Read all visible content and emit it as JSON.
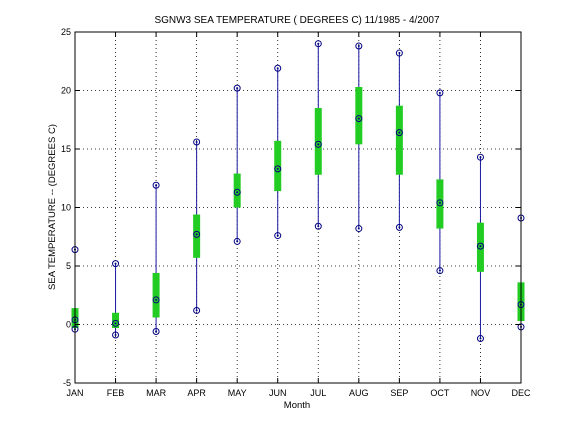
{
  "chart_data": {
    "type": "box",
    "title": "SGNW3  SEA TEMPERATURE ( DEGREES C) 11/1985 - 4/2007",
    "xlabel": "Month",
    "ylabel": "SEA TEMPERATURE -- (DEGREES C)",
    "ylim": [
      -5,
      25
    ],
    "yticks": [
      -5,
      0,
      5,
      10,
      15,
      20,
      25
    ],
    "grid": true,
    "categories": [
      "JAN",
      "FEB",
      "MAR",
      "APR",
      "MAY",
      "JUN",
      "JUL",
      "AUG",
      "SEP",
      "OCT",
      "NOV",
      "DEC"
    ],
    "min": [
      -0.4,
      -0.9,
      -0.6,
      1.2,
      7.1,
      7.6,
      8.4,
      8.2,
      8.3,
      4.6,
      -1.2,
      -0.2
    ],
    "max": [
      6.4,
      5.2,
      11.9,
      15.6,
      20.2,
      21.9,
      24.0,
      23.8,
      23.2,
      19.8,
      14.3,
      9.1
    ],
    "q1": [
      -0.3,
      -0.3,
      0.6,
      5.7,
      10.0,
      11.4,
      12.8,
      15.4,
      12.8,
      8.2,
      4.5,
      0.3
    ],
    "q3": [
      1.4,
      1.0,
      4.4,
      9.4,
      12.9,
      15.7,
      18.5,
      20.3,
      18.7,
      12.4,
      8.7,
      3.6
    ],
    "median": [
      0.4,
      0.1,
      2.1,
      7.7,
      11.3,
      13.3,
      15.4,
      17.6,
      16.4,
      10.4,
      6.7,
      1.7
    ],
    "colors": {
      "whisker": "#1a1aa0",
      "box": "#22cc22",
      "marker": "#000080",
      "grid": "#000000"
    }
  }
}
